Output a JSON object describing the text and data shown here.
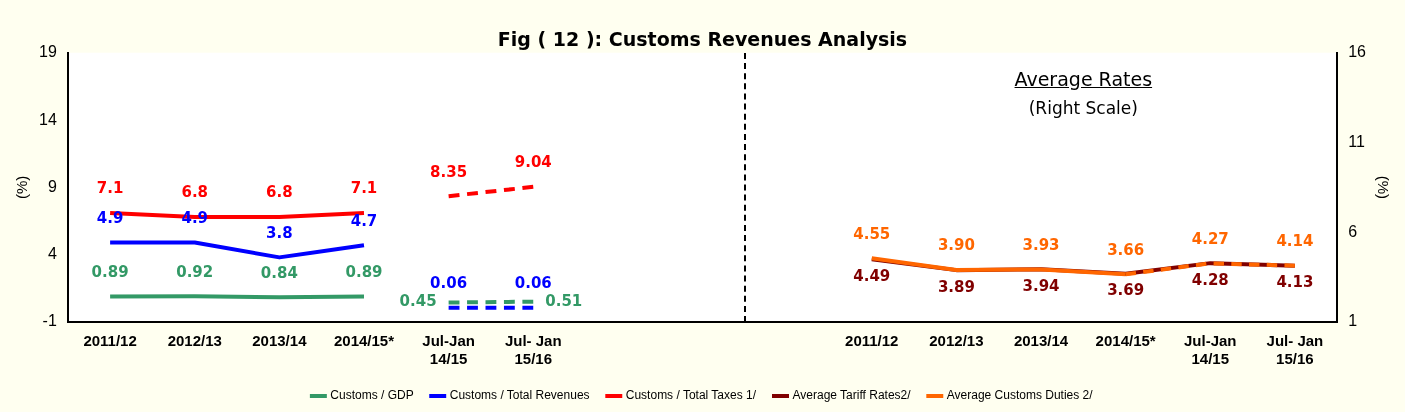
{
  "chart_data": {
    "type": "line",
    "title": "Fig ( 12 ): Customs Revenues Analysis",
    "categories": [
      "2011/12",
      "2012/13",
      "2013/14",
      "2014/15*",
      "Jul-Jan 14/15",
      "Jul- Jan 15/16",
      null,
      null,
      null,
      "2011/12",
      "2012/13",
      "2013/14",
      "2014/15*",
      "Jul-Jan 14/15",
      "Jul- Jan 15/16"
    ],
    "ylabel": "(%)",
    "y2label": "(%)",
    "ylim": [
      -1,
      19
    ],
    "yticks": [
      -1,
      4,
      9,
      14,
      19
    ],
    "y2lim": [
      1,
      16
    ],
    "y2ticks": [
      1,
      6,
      11,
      16
    ],
    "annotations": [
      "Average Rates",
      "(Right Scale)"
    ],
    "legend": "bottom",
    "grid": false,
    "marker": "none",
    "series": [
      {
        "name": "Customs / GDP",
        "color": "#339966",
        "values": [
          0.89,
          0.92,
          0.84,
          0.89,
          null,
          null,
          null,
          null,
          null,
          null,
          null,
          null,
          null,
          null,
          null
        ],
        "value_labels": [
          "0.89",
          "0.92",
          "0.84",
          "0.89",
          null,
          null,
          null,
          null,
          null,
          null,
          null,
          null,
          null,
          null,
          null
        ]
      },
      {
        "color": "#339966",
        "line_style": "dashed",
        "values": [
          null,
          null,
          null,
          null,
          0.45,
          0.51,
          null,
          null,
          null,
          null,
          null,
          null,
          null,
          null,
          null
        ],
        "value_labels": [
          null,
          null,
          null,
          null,
          "0.45",
          "0.51",
          null,
          null,
          null,
          null,
          null,
          null,
          null,
          null,
          null
        ]
      },
      {
        "name": "Customs / Total Revenues",
        "color": "#0000ff",
        "values": [
          4.9,
          4.9,
          3.8,
          4.7,
          null,
          null,
          null,
          null,
          null,
          null,
          null,
          null,
          null,
          null,
          null
        ],
        "value_labels": [
          "4.9",
          "4.9",
          "3.8",
          "4.7",
          null,
          null,
          null,
          null,
          null,
          null,
          null,
          null,
          null,
          null,
          null
        ]
      },
      {
        "color": "#0000ff",
        "line_style": "dashed",
        "values": [
          null,
          null,
          null,
          null,
          0.06,
          0.06,
          null,
          null,
          null,
          null,
          null,
          null,
          null,
          null,
          null
        ],
        "value_labels": [
          null,
          null,
          null,
          null,
          "0.06",
          "0.06",
          null,
          null,
          null,
          null,
          null,
          null,
          null,
          null,
          null
        ]
      },
      {
        "name": "Customs / Total Taxes 1/",
        "color": "#ff0000",
        "values": [
          7.1,
          6.8,
          6.8,
          7.1,
          null,
          null,
          null,
          null,
          null,
          null,
          null,
          null,
          null,
          null,
          null
        ],
        "value_labels": [
          "7.1",
          "6.8",
          "6.8",
          "7.1",
          null,
          null,
          null,
          null,
          null,
          null,
          null,
          null,
          null,
          null,
          null
        ]
      },
      {
        "color": "#ff0000",
        "line_style": "dashed",
        "values": [
          null,
          null,
          null,
          null,
          8.35,
          9.04,
          null,
          null,
          null,
          null,
          null,
          null,
          null,
          null,
          null
        ],
        "value_labels": [
          null,
          null,
          null,
          null,
          "8.35",
          "9.04",
          null,
          null,
          null,
          null,
          null,
          null,
          null,
          null,
          null
        ]
      },
      {
        "name": "Average Tariff Rates2/",
        "color": "#800000",
        "axis": "y2",
        "values": [
          null,
          null,
          null,
          null,
          null,
          null,
          null,
          null,
          null,
          4.49,
          3.89,
          3.94,
          3.69,
          4.28,
          4.13
        ],
        "value_labels": [
          null,
          null,
          null,
          null,
          null,
          null,
          null,
          null,
          null,
          "4.49",
          "3.89",
          "3.94",
          "3.69",
          "4.28",
          "4.13"
        ]
      },
      {
        "name": "Average Customs Duties 2/",
        "color": "#ff6600",
        "axis": "y2",
        "values": [
          null,
          null,
          null,
          null,
          null,
          null,
          null,
          null,
          null,
          4.55,
          3.9,
          3.93,
          3.66,
          null,
          null
        ],
        "value_labels": [
          null,
          null,
          null,
          null,
          null,
          null,
          null,
          null,
          null,
          "4.55",
          "3.90",
          "3.93",
          "3.66",
          null,
          null
        ]
      },
      {
        "color": "#ff6600",
        "axis": "y2",
        "line_style": "dashed",
        "values": [
          null,
          null,
          null,
          null,
          null,
          null,
          null,
          null,
          null,
          null,
          null,
          null,
          3.66,
          4.27,
          4.14
        ],
        "value_labels": [
          null,
          null,
          null,
          null,
          null,
          null,
          null,
          null,
          null,
          null,
          null,
          null,
          null,
          "4.27",
          "4.14"
        ]
      }
    ]
  }
}
